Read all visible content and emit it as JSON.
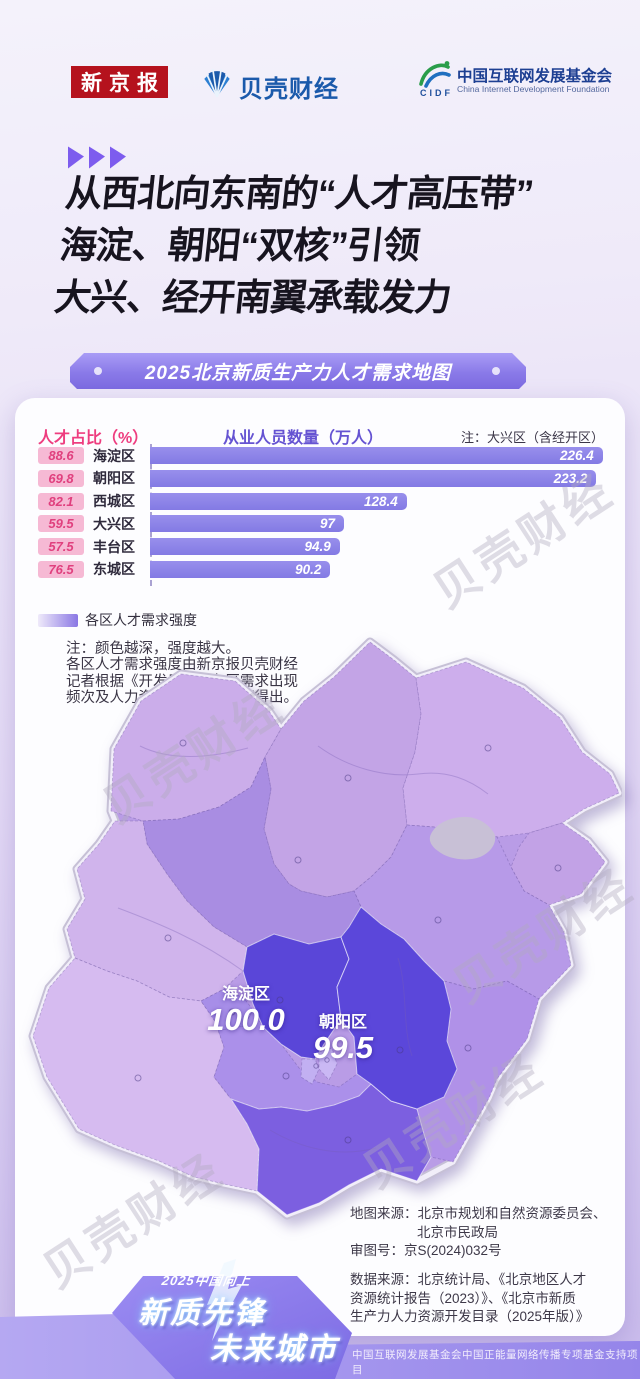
{
  "header": {
    "logo_xinjingbao": "新京报",
    "logo_beike": "贝壳财经",
    "cidf_cn": "中国互联网发展基金会",
    "cidf_en": "China Internet Development Foundation",
    "cidf_abbr": "CIDF"
  },
  "title": {
    "line1": "从西北向东南的“人才高压带”",
    "line2": "海淀、朝阳“双核”引领",
    "line3": "大兴、经开南翼承载发力"
  },
  "banner": "2025北京新质生产力人才需求地图",
  "chart": {
    "left_header": "人才占比（%）",
    "right_header": "从业人员数量（万人）",
    "note": "注：大兴区（含经开区）",
    "scale_max": 227,
    "rows": [
      {
        "share": "88.6",
        "district": "海淀区",
        "value": "226.4",
        "v": 226.4
      },
      {
        "share": "69.8",
        "district": "朝阳区",
        "value": "223.2",
        "v": 223.2
      },
      {
        "share": "82.1",
        "district": "西城区",
        "value": "128.4",
        "v": 128.4
      },
      {
        "share": "59.5",
        "district": "大兴区",
        "value": "97",
        "v": 97
      },
      {
        "share": "57.5",
        "district": "丰台区",
        "value": "94.9",
        "v": 94.9
      },
      {
        "share": "76.5",
        "district": "东城区",
        "value": "90.2",
        "v": 90.2
      }
    ]
  },
  "legend": {
    "label": "各区人才需求强度"
  },
  "map_note": {
    "l1": "注：颜色越深，强度越大。",
    "l2": "各区人才需求强度由新京报贝壳财经",
    "l3": "记者根据《开发目录》各区需求出现",
    "l4": "频次及人力资源开发评级计算得出。"
  },
  "map": {
    "labels": [
      {
        "name": "海淀区",
        "value": "100.0"
      },
      {
        "name": "朝阳区",
        "value": "99.5"
      }
    ]
  },
  "sources": {
    "map_l1": "地图来源：北京市规划和自然资源委员会、",
    "map_l2": "北京市民政局",
    "map_l3": "审图号：京S(2024)032号",
    "data_l1": "数据来源：北京统计局、《北京地区人才",
    "data_l2": "资源统计报告（2023）》、《北京市新质",
    "data_l3": "生产力人力资源开发目录（2025年版）》"
  },
  "footer": {
    "tagline": "2025中国向上",
    "slogan1": "新质先锋",
    "slogan2": "未来城市",
    "support": "中国互联网发展基金会中国正能量网络传播专项基金支持项目"
  },
  "watermark": "贝壳财经",
  "colors": {
    "accent_pink": "#ee3d7f",
    "bar_purple": "#8a80e8",
    "banner_purple": "#7e6ce2",
    "map_darkest": "#5a46d8",
    "map_lightest": "#d6bbf0",
    "logo_red": "#b5121d"
  },
  "chart_data": [
    {
      "type": "bar",
      "title": "2025北京新质生产力人才需求地图",
      "categories": [
        "海淀区",
        "朝阳区",
        "西城区",
        "大兴区",
        "丰台区",
        "东城区"
      ],
      "series": [
        {
          "name": "人才占比（%）",
          "values": [
            88.6,
            69.8,
            82.1,
            59.5,
            57.5,
            76.5
          ]
        },
        {
          "name": "从业人员数量（万人）",
          "values": [
            226.4,
            223.2,
            128.4,
            97,
            94.9,
            90.2
          ]
        }
      ],
      "xlabel": "",
      "ylabel": "",
      "xlim": [
        0,
        230
      ],
      "note": "注：大兴区（含经开区）",
      "layout": "horizontal bars, value labels inside bar ends, pink share badges at left"
    },
    {
      "type": "heatmap",
      "title": "各区人才需求强度",
      "note": "颜色越深，强度越大",
      "labeled_values": {
        "海淀区": 100.0,
        "朝阳区": 99.5
      },
      "layout": "Beijing district choropleth, purple scale, Haidian & Chaoyang darkest, Daxing dark, outer districts light"
    }
  ]
}
